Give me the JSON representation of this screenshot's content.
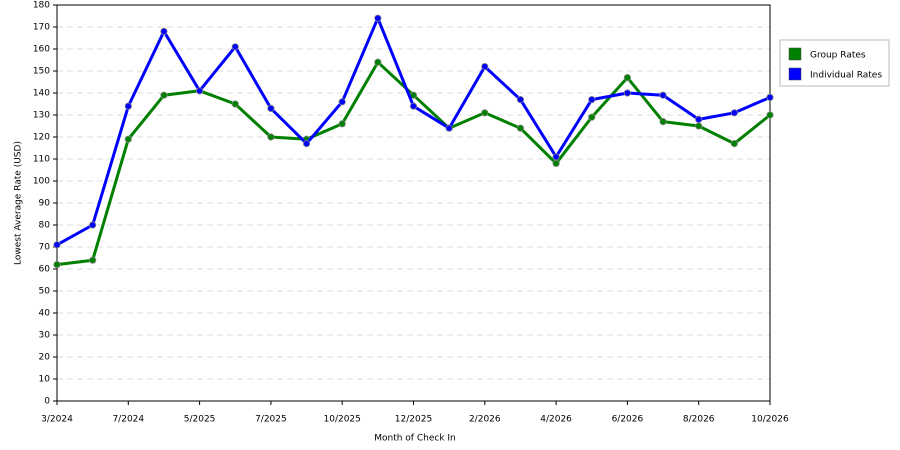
{
  "chart_data": {
    "type": "line",
    "x_label": "Month of Check In",
    "y_label": "Lowest Average Rate (USD)",
    "categories": [
      "3/2024",
      null,
      "7/2024",
      null,
      "5/2025",
      null,
      "7/2025",
      null,
      "10/2025",
      null,
      "12/2025",
      null,
      "2/2026",
      null,
      "4/2026",
      null,
      "6/2026",
      null,
      "8/2026",
      null,
      "10/2026"
    ],
    "series": [
      {
        "name": "Group Rates",
        "color": "#008000",
        "values": [
          62,
          64,
          119,
          139,
          141,
          135,
          120,
          119,
          126,
          154,
          139,
          124,
          131,
          124,
          108,
          129,
          147,
          127,
          125,
          117,
          130
        ]
      },
      {
        "name": "Individual Rates",
        "color": "#0000ff",
        "values": [
          71,
          80,
          134,
          168,
          141,
          161,
          133,
          117,
          136,
          174,
          134,
          124,
          152,
          137,
          111,
          137,
          140,
          139,
          128,
          131,
          138
        ]
      }
    ],
    "ylim": [
      0,
      180
    ],
    "yticks": [
      0,
      10,
      20,
      30,
      40,
      50,
      60,
      70,
      80,
      90,
      100,
      110,
      120,
      130,
      140,
      150,
      160,
      170,
      180
    ],
    "grid": true,
    "legend": "right"
  }
}
